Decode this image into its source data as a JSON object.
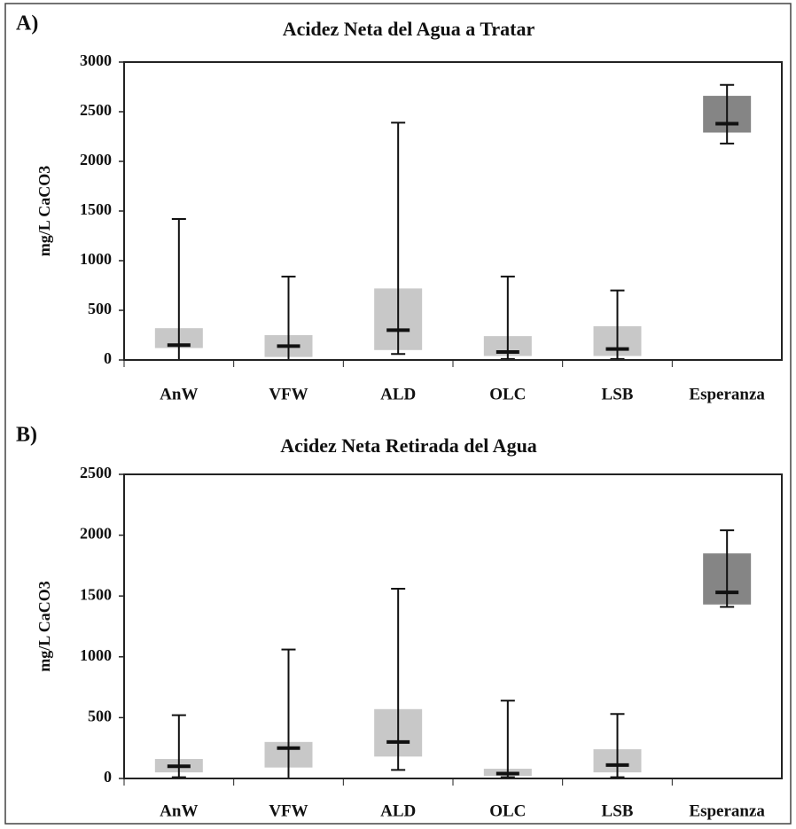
{
  "chart_data": [
    {
      "type": "box",
      "panel_label": "A)",
      "title": "Acidez Neta del Agua a Tratar",
      "y_label": "mg/L CaCO3",
      "categories": [
        "AnW",
        "VFW",
        "ALD",
        "OLC",
        "LSB",
        "Esperanza"
      ],
      "min": [
        0,
        0,
        60,
        10,
        10,
        2180
      ],
      "q1": [
        120,
        30,
        100,
        40,
        40,
        2290
      ],
      "median": [
        150,
        140,
        300,
        80,
        110,
        2380
      ],
      "q3": [
        320,
        250,
        720,
        240,
        340,
        2660
      ],
      "max": [
        1420,
        840,
        2390,
        840,
        700,
        2770
      ],
      "colors": [
        "#c8c8c8",
        "#c8c8c8",
        "#c8c8c8",
        "#c8c8c8",
        "#c8c8c8",
        "#858585"
      ],
      "ylim": [
        0,
        3000
      ],
      "yticks": [
        0,
        500,
        1000,
        1500,
        2000,
        2500,
        3000
      ]
    },
    {
      "type": "box",
      "panel_label": "B)",
      "title": "Acidez Neta Retirada del Agua",
      "y_label": "mg/L CaCO3",
      "categories": [
        "AnW",
        "VFW",
        "ALD",
        "OLC",
        "LSB",
        "Esperanza"
      ],
      "min": [
        10,
        0,
        70,
        10,
        10,
        1410
      ],
      "q1": [
        50,
        90,
        180,
        20,
        50,
        1430
      ],
      "median": [
        100,
        250,
        300,
        40,
        110,
        1530
      ],
      "q3": [
        160,
        300,
        570,
        80,
        240,
        1850
      ],
      "max": [
        520,
        1060,
        1560,
        640,
        530,
        2040
      ],
      "colors": [
        "#c8c8c8",
        "#c8c8c8",
        "#c8c8c8",
        "#c8c8c8",
        "#c8c8c8",
        "#858585"
      ],
      "ylim": [
        0,
        2500
      ],
      "yticks": [
        0,
        500,
        1000,
        1500,
        2000,
        2500
      ]
    }
  ]
}
